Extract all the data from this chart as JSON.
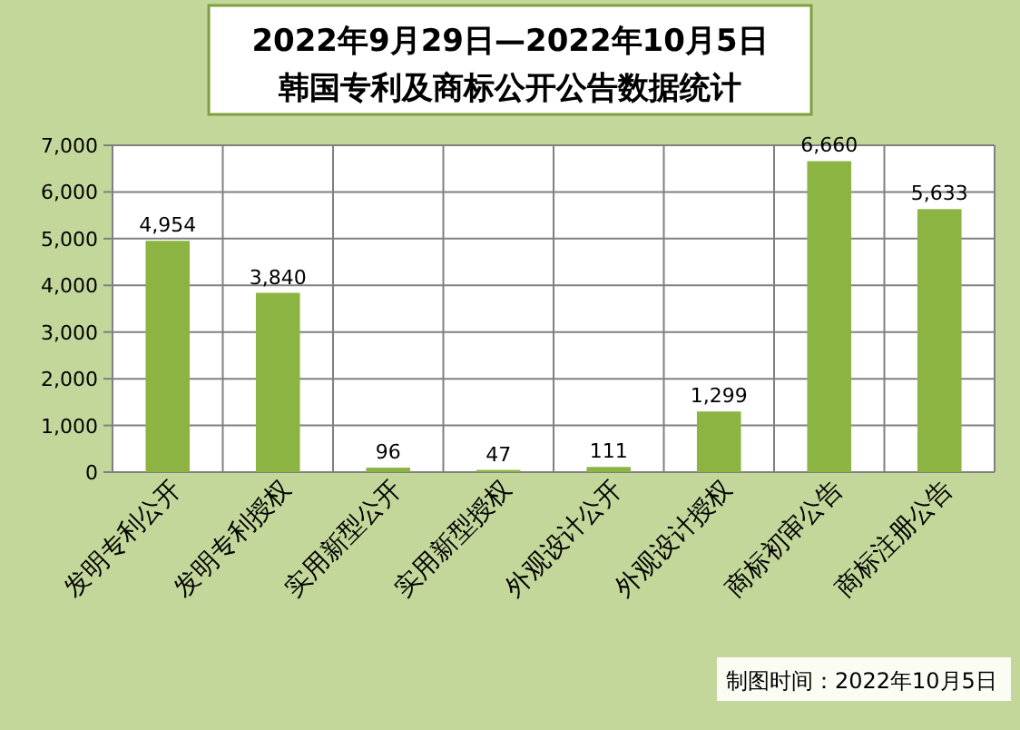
{
  "chart_data": {
    "type": "bar",
    "title": "2022年9月29日—2022年10月5日",
    "subtitle": "韩国专利及商标公开公告数据统计",
    "categories": [
      "发明专利公开",
      "发明专利授权",
      "实用新型公开",
      "实用新型授权",
      "外观设计公开",
      "外观设计授权",
      "商标初审公告",
      "商标注册公告"
    ],
    "values": [
      4954,
      3840,
      96,
      47,
      111,
      1299,
      6660,
      5633
    ],
    "value_labels": [
      "4,954",
      "3,840",
      "96",
      "47",
      "111",
      "1,299",
      "6,660",
      "5,633"
    ],
    "color": "#8cb443",
    "ylim": [
      0,
      7000
    ],
    "yticks": [
      {
        "value": 0,
        "label": "0"
      },
      {
        "value": 1000,
        "label": "1,000"
      },
      {
        "value": 2000,
        "label": "2,000"
      },
      {
        "value": 3000,
        "label": "3,000"
      },
      {
        "value": 4000,
        "label": "4,000"
      },
      {
        "value": 5000,
        "label": "5,000"
      },
      {
        "value": 6000,
        "label": "6,000"
      },
      {
        "value": 7000,
        "label": "7,000"
      }
    ],
    "grid": true,
    "annotations": [
      "制图时间：2022年10月5日"
    ]
  }
}
